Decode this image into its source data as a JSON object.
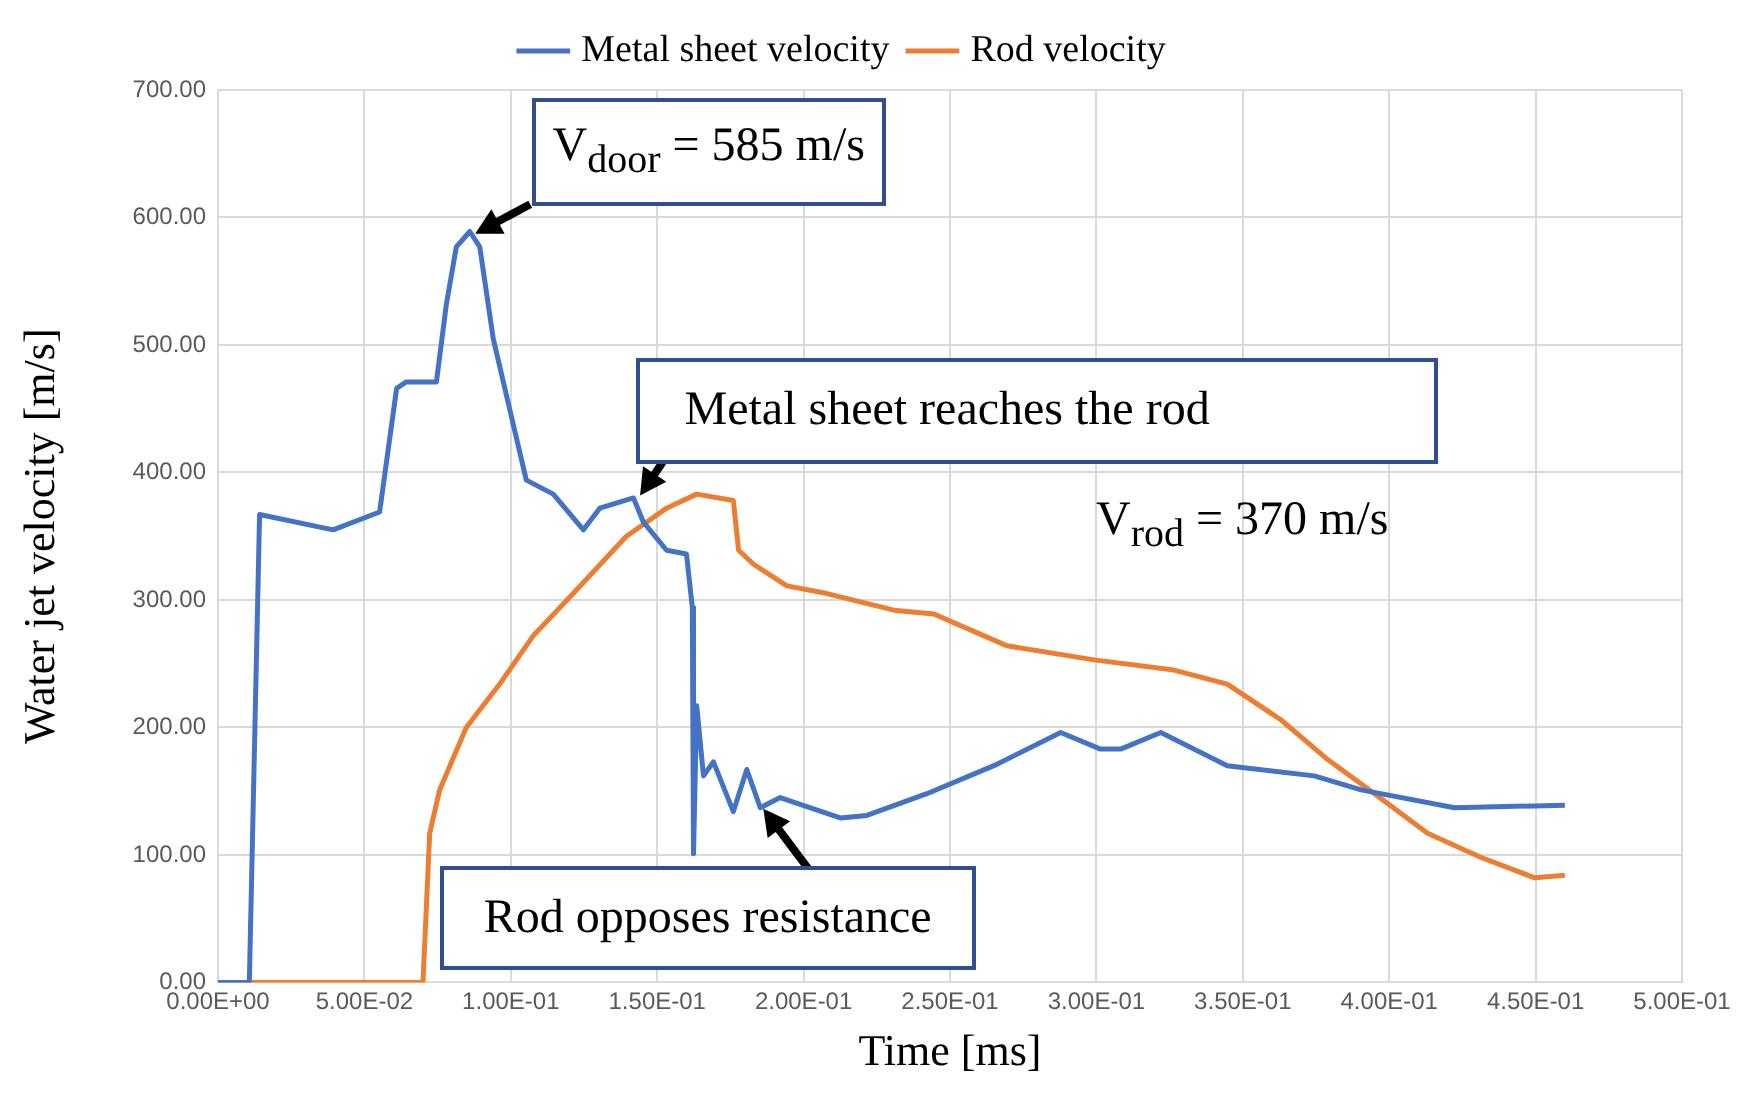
{
  "chart_data": {
    "type": "line",
    "xlabel": "Time [ms]",
    "ylabel": "Water jet velocity [m/s]",
    "xlim": [
      0,
      0.5
    ],
    "xticks": [
      {
        "value": 0,
        "label": "0.00E+00"
      },
      {
        "value": 0.05,
        "label": "5.00E-02"
      },
      {
        "value": 0.1,
        "label": "1.00E-01"
      },
      {
        "value": 0.15,
        "label": "1.50E-01"
      },
      {
        "value": 0.2,
        "label": "2.00E-01"
      },
      {
        "value": 0.25,
        "label": "2.50E-01"
      },
      {
        "value": 0.3,
        "label": "3.00E-01"
      },
      {
        "value": 0.35,
        "label": "3.50E-01"
      },
      {
        "value": 0.4,
        "label": "4.00E-01"
      },
      {
        "value": 0.45,
        "label": "4.50E-01"
      },
      {
        "value": 0.5,
        "label": "5.00E-01"
      }
    ],
    "ylim": [
      0,
      700
    ],
    "yticks": [
      {
        "value": 0,
        "label": "0.00"
      },
      {
        "value": 100,
        "label": "100.00"
      },
      {
        "value": 200,
        "label": "200.00"
      },
      {
        "value": 300,
        "label": "300.00"
      },
      {
        "value": 400,
        "label": "400.00"
      },
      {
        "value": 500,
        "label": "500.00"
      },
      {
        "value": 600,
        "label": "600.00"
      },
      {
        "value": 700,
        "label": "700.00"
      }
    ],
    "grid": true,
    "legend": "top",
    "marker": "none",
    "line_style": "solid",
    "series": [
      {
        "name": "Metal sheet velocity",
        "color": "#4472c4",
        "x": [
          0,
          0.0107,
          0.0142,
          0.0393,
          0.0552,
          0.061,
          0.0643,
          0.0746,
          0.078,
          0.0814,
          0.086,
          0.0894,
          0.094,
          0.1008,
          0.1053,
          0.1145,
          0.1248,
          0.1304,
          0.1419,
          0.1453,
          0.1532,
          0.16,
          0.162,
          0.1624,
          0.1635,
          0.1658,
          0.1692,
          0.176,
          0.1806,
          0.1852,
          0.192,
          0.2125,
          0.2216,
          0.2421,
          0.265,
          0.2878,
          0.3014,
          0.3083,
          0.322,
          0.3447,
          0.3744,
          0.3904,
          0.4223,
          0.46
        ],
        "values": [
          0,
          0,
          367,
          355,
          369,
          466,
          471,
          471,
          532,
          577,
          589,
          577,
          505,
          438,
          394,
          383,
          355,
          372,
          380,
          361,
          339,
          336,
          294,
          101,
          217,
          162,
          173,
          134,
          167,
          137,
          145,
          129,
          131,
          148,
          170,
          196,
          183,
          183,
          196,
          170,
          162,
          151,
          137,
          139
        ]
      },
      {
        "name": "Rod velocity",
        "color": "#ed7d31",
        "x": [
          0,
          0.07,
          0.0723,
          0.0757,
          0.0848,
          0.0962,
          0.1077,
          0.1213,
          0.1395,
          0.1532,
          0.1635,
          0.176,
          0.1778,
          0.1829,
          0.1943,
          0.208,
          0.2308,
          0.2445,
          0.2695,
          0.2992,
          0.3265,
          0.3447,
          0.363,
          0.3789,
          0.395,
          0.4131,
          0.4314,
          0.4497,
          0.46
        ],
        "values": [
          0,
          0,
          117,
          151,
          200,
          234,
          272,
          305,
          350,
          372,
          383,
          378,
          339,
          328,
          311,
          305,
          292,
          289,
          264,
          253,
          245,
          234,
          206,
          175,
          148,
          117,
          98,
          82,
          84
        ]
      }
    ],
    "annotations": [
      {
        "text": "V$_{door}$ = 585 m/s",
        "x": 0.086,
        "y": 585
      },
      {
        "text": "Metal sheet reaches the rod",
        "x": 0.143,
        "y": 378
      },
      "V$_{rod}$ = 370 m/s",
      {
        "text": "Rod opposes resistance",
        "x": 0.185,
        "y": 140
      }
    ]
  }
}
